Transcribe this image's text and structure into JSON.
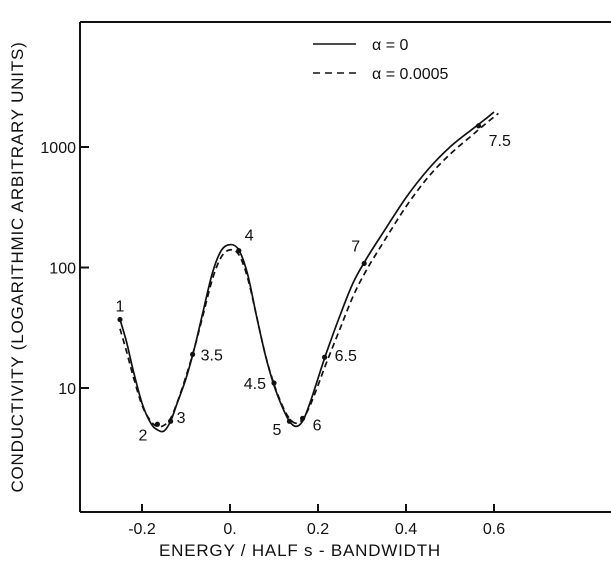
{
  "chart_data": {
    "type": "line",
    "title": "",
    "xlabel": "ENERGY / HALF s - BANDWIDTH",
    "ylabel": "CONDUCTIVITY (LOGARITHMIC ARBITRARY UNITS)",
    "xlim": [
      -0.3,
      0.8
    ],
    "ylim": [
      1,
      6000
    ],
    "yscale": "log",
    "x_ticks": [
      -0.2,
      0.0,
      0.2,
      0.4,
      0.6
    ],
    "x_tick_labels": [
      "-0.2",
      "0.",
      "0.2",
      "0.4",
      "0.6"
    ],
    "y_ticks": [
      10,
      100,
      1000
    ],
    "y_tick_labels": [
      "10",
      "100",
      "1000"
    ],
    "grid": false,
    "legend_position": "top-right",
    "series": [
      {
        "name": "α = 0",
        "line_style": "solid",
        "x": [
          -0.25,
          -0.235,
          -0.22,
          -0.2,
          -0.18,
          -0.165,
          -0.15,
          -0.135,
          -0.12,
          -0.1,
          -0.08,
          -0.06,
          -0.04,
          -0.02,
          0.0,
          0.02,
          0.04,
          0.06,
          0.08,
          0.1,
          0.12,
          0.135,
          0.15,
          0.165,
          0.18,
          0.2,
          0.22,
          0.25,
          0.28,
          0.31,
          0.35,
          0.4,
          0.45,
          0.5,
          0.55,
          0.58,
          0.6
        ],
        "values": [
          37,
          24,
          14,
          7.5,
          5.1,
          4.5,
          4.4,
          5.3,
          7.5,
          12,
          22,
          45,
          90,
          138,
          155,
          140,
          88,
          40,
          19,
          10.5,
          6.8,
          5.3,
          4.8,
          5.3,
          7.2,
          12,
          20,
          40,
          75,
          118,
          200,
          380,
          650,
          1000,
          1400,
          1700,
          1950
        ]
      },
      {
        "name": "α = 0.0005",
        "line_style": "dashed",
        "x": [
          -0.25,
          -0.235,
          -0.22,
          -0.2,
          -0.18,
          -0.165,
          -0.15,
          -0.135,
          -0.12,
          -0.1,
          -0.08,
          -0.06,
          -0.04,
          -0.02,
          0.0,
          0.02,
          0.04,
          0.06,
          0.08,
          0.1,
          0.12,
          0.135,
          0.15,
          0.165,
          0.18,
          0.2,
          0.22,
          0.25,
          0.28,
          0.31,
          0.35,
          0.4,
          0.45,
          0.5,
          0.55,
          0.58,
          0.61
        ],
        "values": [
          31,
          20,
          12.5,
          7.2,
          5.3,
          4.8,
          4.9,
          5.6,
          7.6,
          12.5,
          22,
          42,
          80,
          122,
          140,
          128,
          82,
          40,
          19,
          10.8,
          7,
          5.6,
          5.1,
          5.5,
          6.9,
          10.5,
          16.5,
          31,
          58,
          95,
          165,
          320,
          560,
          870,
          1250,
          1550,
          1900
        ]
      }
    ],
    "labeled_points": [
      {
        "label": "1",
        "x": -0.25,
        "y": 37
      },
      {
        "label": "2",
        "x": -0.165,
        "y": 5.0
      },
      {
        "label": "3",
        "x": -0.135,
        "y": 5.3
      },
      {
        "label": "3.5",
        "x": -0.085,
        "y": 19
      },
      {
        "label": "4",
        "x": 0.02,
        "y": 138
      },
      {
        "label": "4.5",
        "x": 0.1,
        "y": 11
      },
      {
        "label": "5",
        "x": 0.135,
        "y": 5.3
      },
      {
        "label": "6",
        "x": 0.165,
        "y": 5.6
      },
      {
        "label": "6.5",
        "x": 0.215,
        "y": 18
      },
      {
        "label": "7",
        "x": 0.305,
        "y": 108
      },
      {
        "label": "7.5",
        "x": 0.565,
        "y": 1500
      }
    ]
  }
}
